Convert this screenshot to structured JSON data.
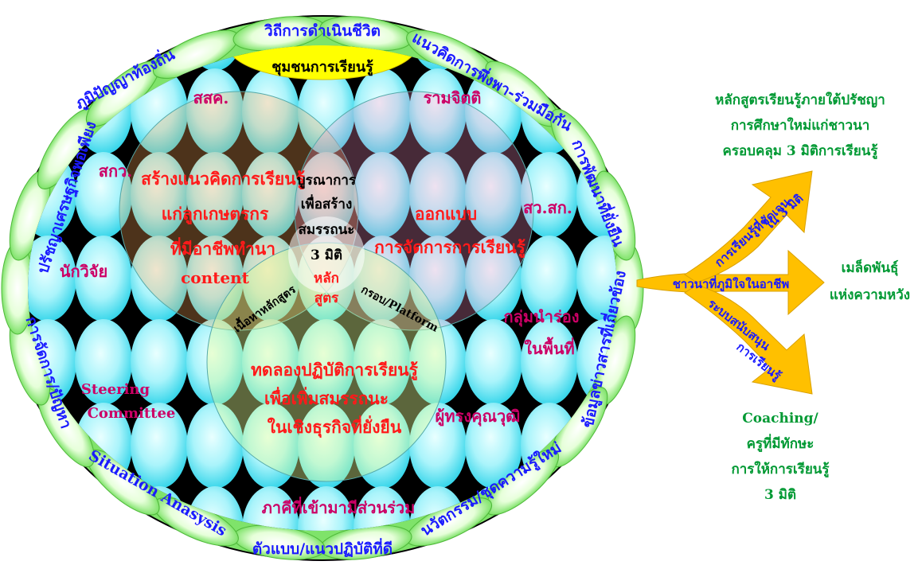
{
  "ring_labels": {
    "top": "วิถีการดำเนินชีวิต",
    "local_wisdom": "ภูมิปัญญาท้องถิ่น",
    "concept": "แนวคิดการพึ่งพา-ร่วมมือกัน",
    "sustainable_dev": "การพัฒนาที่ยั่งยืน",
    "info": "ข้อมูลข่าวสารที่เกี่ยวข้อง",
    "innovation": "นวัตกรรม/ชุดความรู้ใหม่",
    "model": "ตัวแบบ/แนวปฏิบัติที่ดี",
    "situation": "Situation Anasysis",
    "management": "การจัดการ/ปัญหา",
    "sufficiency": "ปรัชญาเศรษฐกิจพอเพียง"
  },
  "community": "ชุมชนการเรียนรู้",
  "stakeholders": {
    "sasak": "สสค.",
    "ramjit": "รามจิตติ",
    "sakw": "สกว.",
    "swsk": "สว.สก.",
    "researcher": "นักวิจัย",
    "pilot_group": [
      "กลุ่มนำร่อง",
      "ในพื้นที่"
    ],
    "steering": [
      "Steering",
      "Committee"
    ],
    "expert": "ผู้ทรงคุณวุฒิ",
    "partners": "ภาคีที่เข้ามามีส่วนร่วม"
  },
  "circles": {
    "left": [
      "สร้างแนวคิดการเรียนรู้",
      "แก่ลูกเกษตรกร",
      "ที่มีอาชีพทำนา",
      "content"
    ],
    "right": [
      "ออกแบบ",
      "การจัดการการเรียนรู้"
    ],
    "bottom": [
      "ทดลองปฏิบัติการเรียนรู้",
      "เพื่อเพิ่มสมรรถนะ",
      "ในเชิงธุรกิจที่ยั่งยืน"
    ],
    "center": [
      "บูรณาการ",
      "เพื่อสร้าง",
      "สมรรถนะ",
      "3 มิติ"
    ],
    "curriculum": [
      "หลัก",
      "สูตร"
    ],
    "content_label": "เนื้อหาหลักสูตร",
    "platform_label": "กรอบ/Platform"
  },
  "arrows": {
    "main": "ชาวนาที่ภูมิใจในอาชีพ",
    "up": [
      "การเรียนรู้ที่ชัดเจน",
      "ใน 3 มิติ"
    ],
    "down": [
      "ระบบสนับสนุน",
      "การเรียนรู้"
    ]
  },
  "right_text": {
    "title": [
      "หลักสูตรเรียนรู้ภายใต้ปรัชญา",
      "การศึกษาใหม่แก่ชาวนา",
      "ครอบคลุม 3 มิติการเรียนรู้"
    ],
    "seed": [
      "เมล็ดพันธุ์",
      "แห่งความหวัง"
    ],
    "coaching": [
      "Coaching/",
      "ครูที่มีทักษะ",
      "การให้การเรียนรู้",
      "3 มิติ"
    ]
  },
  "colors": {
    "ring": "#7fe36a",
    "ring_light": "#e6ffd9",
    "bubble": "#5ee3f2",
    "bubble_light": "#e9ffff",
    "dark": "#000000",
    "band": "#ffff00",
    "magenta": "#cc0066",
    "red": "#ff1a1a",
    "ring_text": "#1a1aff",
    "green_text": "#009933",
    "arrow": "#ffc000"
  }
}
